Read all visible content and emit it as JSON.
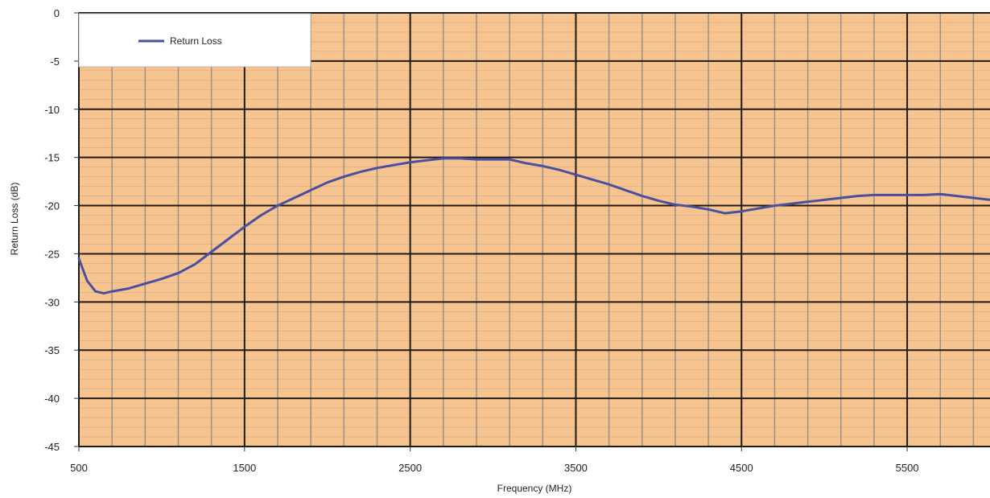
{
  "chart_data": {
    "type": "line",
    "title": "",
    "xlabel": "Frequency (MHz)",
    "ylabel": "Return Loss (dB)",
    "xlim": [
      500,
      6000
    ],
    "ylim": [
      -45,
      0
    ],
    "x_ticks": [
      500,
      1500,
      2500,
      3500,
      4500,
      5500
    ],
    "y_ticks": [
      0,
      -5,
      -10,
      -15,
      -20,
      -25,
      -30,
      -35,
      -40,
      -45
    ],
    "grid": true,
    "minor_x_step": 200,
    "minor_y_step": 1,
    "legend": {
      "position": "top-left",
      "entries": [
        "Return Loss"
      ]
    },
    "colors": {
      "plot_background": "#f7c490",
      "line": "#4a4f9e",
      "major_grid": "#1e1a14",
      "minor_grid": "#9a9189"
    },
    "series": [
      {
        "name": "Return Loss",
        "x": [
          500,
          550,
          600,
          650,
          700,
          800,
          900,
          1000,
          1100,
          1200,
          1300,
          1400,
          1500,
          1600,
          1700,
          1800,
          1900,
          2000,
          2100,
          2200,
          2300,
          2400,
          2500,
          2600,
          2700,
          2800,
          2900,
          3000,
          3100,
          3200,
          3300,
          3400,
          3500,
          3600,
          3700,
          3800,
          3900,
          4000,
          4100,
          4200,
          4300,
          4400,
          4500,
          4600,
          4700,
          4800,
          4900,
          5000,
          5100,
          5200,
          5300,
          5400,
          5500,
          5600,
          5700,
          5800,
          5900,
          6000
        ],
        "values": [
          -25.5,
          -27.8,
          -28.9,
          -29.1,
          -28.9,
          -28.6,
          -28.1,
          -27.6,
          -27.0,
          -26.1,
          -24.8,
          -23.5,
          -22.2,
          -21.0,
          -20.0,
          -19.2,
          -18.4,
          -17.6,
          -17.0,
          -16.5,
          -16.1,
          -15.8,
          -15.5,
          -15.3,
          -15.1,
          -15.1,
          -15.2,
          -15.2,
          -15.2,
          -15.6,
          -15.9,
          -16.3,
          -16.8,
          -17.3,
          -17.8,
          -18.4,
          -19.0,
          -19.5,
          -19.9,
          -20.1,
          -20.4,
          -20.8,
          -20.6,
          -20.3,
          -20.0,
          -19.8,
          -19.6,
          -19.4,
          -19.2,
          -19.0,
          -18.9,
          -18.9,
          -18.9,
          -18.9,
          -18.8,
          -19.0,
          -19.2,
          -19.4
        ]
      }
    ]
  }
}
